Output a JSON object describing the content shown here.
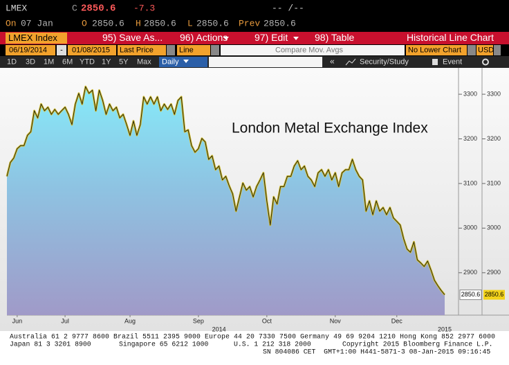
{
  "header": {
    "ticker": "LMEX",
    "close_label": "C",
    "close": "2850.6",
    "change": "-7.3",
    "time": "-- /--",
    "date_label": "On",
    "date": "07 Jan",
    "open_label": "O",
    "open": "2850.6",
    "high_label": "H",
    "high": "2850.6",
    "low_label": "L",
    "low": "2850.6",
    "prev_label": "Prev",
    "prev": "2850.6"
  },
  "toolbar": {
    "security": "LMEX Index",
    "buttons": [
      "95) Save As...",
      "96) Actions",
      "97) Edit",
      "98) Table"
    ],
    "view": "Historical Line Chart"
  },
  "settings": {
    "start": "06/19/2014",
    "sep": "-",
    "end": "01/08/2015",
    "field": "Last Price",
    "style": "Line",
    "compare": "Compare Mov. Avgs",
    "lower": "No Lower Chart",
    "currency": "USD"
  },
  "ranges": {
    "buttons": [
      "1D",
      "3D",
      "1M",
      "6M",
      "YTD",
      "1Y",
      "5Y",
      "Max"
    ],
    "period": "Daily",
    "collapse": "«",
    "study": "Security/Study",
    "event": "Event"
  },
  "chart_data": {
    "type": "area",
    "title": "London Metal Exchange Index",
    "values": [
      3116,
      3147,
      3157,
      3178,
      3185,
      3185,
      3208,
      3216,
      3263,
      3247,
      3278,
      3263,
      3271,
      3255,
      3266,
      3255,
      3263,
      3271,
      3255,
      3232,
      3278,
      3302,
      3278,
      3317,
      3302,
      3309,
      3263,
      3309,
      3286,
      3255,
      3278,
      3263,
      3271,
      3247,
      3255,
      3232,
      3208,
      3240,
      3208,
      3232,
      3294,
      3278,
      3294,
      3278,
      3294,
      3263,
      3278,
      3266,
      3278,
      3255,
      3286,
      3294,
      3216,
      3220,
      3185,
      3170,
      3178,
      3201,
      3193,
      3154,
      3162,
      3131,
      3139,
      3108,
      3116,
      3095,
      3077,
      3038,
      3070,
      3101,
      3085,
      3093,
      3070,
      3093,
      3108,
      3124,
      3061,
      3007,
      3070,
      3054,
      3093,
      3093,
      3116,
      3116,
      3139,
      3151,
      3131,
      3139,
      3116,
      3108,
      3093,
      3124,
      3131,
      3116,
      3131,
      3108,
      3124,
      3093,
      3124,
      3131,
      3131,
      3154,
      3131,
      3116,
      3108,
      3038,
      3061,
      3030,
      3061,
      3038,
      3046,
      3030,
      3046,
      3023,
      3015,
      3007,
      2976,
      2953,
      2946,
      2969,
      2929,
      2922,
      2914,
      2926,
      2906,
      2883,
      2871,
      2860,
      2850.6
    ],
    "xlim": [
      0,
      128
    ],
    "xticks": [
      {
        "value": 3,
        "label": "Jun"
      },
      {
        "value": 17,
        "label": "Jul"
      },
      {
        "value": 36,
        "label": "Aug"
      },
      {
        "value": 56,
        "label": "Sep"
      },
      {
        "value": 76,
        "label": "Oct"
      },
      {
        "value": 96,
        "label": "Nov"
      },
      {
        "value": 114,
        "label": "Dec"
      }
    ],
    "year_ticks": [
      {
        "value": 62,
        "label": "2014"
      },
      {
        "value": 128,
        "label": "2015"
      }
    ],
    "ylim": [
      2805,
      3356
    ],
    "yticks": [
      2900,
      3000,
      3100,
      3200,
      3300
    ],
    "color": "#d6c23a",
    "grid": false
  },
  "footer": {
    "line1": "Australia 61 2 9777 8600 Brazil 5511 2395 9000 Europe 44 20 7330 7500 Germany 49 69 9204 1210 Hong Kong 852 2977 6000",
    "line2": [
      "Japan 81 3 3201 8900",
      "Singapore 65 6212 1000",
      "U.S. 1 212 318 2000",
      "Copyright 2015 Bloomberg Finance L.P."
    ],
    "line3": "SN 804086 CET  GMT+1:00 H441-5871-3 08-Jan-2015 09:16:45"
  }
}
